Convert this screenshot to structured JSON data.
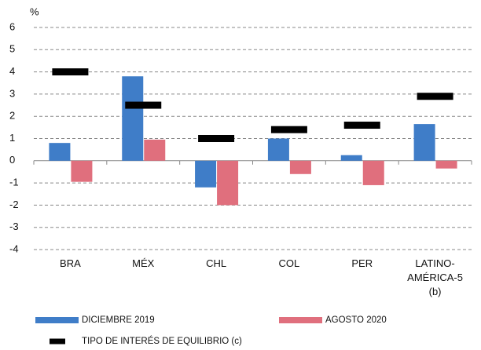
{
  "chart_data": {
    "type": "bar",
    "y_label": "%",
    "categories": [
      "BRA",
      "MÉX",
      "CHL",
      "COL",
      "PER",
      "LATINO-\nAMÉRICA-5\n(b)"
    ],
    "series": [
      {
        "name": "DICIEMBRE 2019",
        "color": "#3f7dc8",
        "values": [
          0.8,
          3.8,
          -1.2,
          1.0,
          0.25,
          1.65
        ]
      },
      {
        "name": "AGOSTO 2020",
        "color": "#e06f7d",
        "values": [
          -0.95,
          0.95,
          -2.0,
          -0.6,
          -1.1,
          -0.35
        ]
      },
      {
        "name": "TIPO DE INTERÉS DE EQUILIBRIO (c)",
        "color": "#000000",
        "marker": "dash",
        "values": [
          4.0,
          2.5,
          1.0,
          1.4,
          1.6,
          2.9
        ]
      }
    ],
    "ylim": [
      -4,
      6
    ],
    "yticks": [
      -4,
      -3,
      -2,
      -1,
      0,
      1,
      2,
      3,
      4,
      5,
      6
    ],
    "grid": true
  }
}
